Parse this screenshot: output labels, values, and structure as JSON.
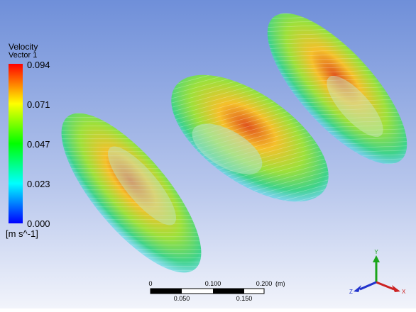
{
  "legend": {
    "title": "Velocity",
    "subtitle": "Vector 1",
    "labels": [
      "0.094",
      "0.071",
      "0.047",
      "0.023",
      "0.000"
    ],
    "unit": "[m s^-1]"
  },
  "scale_bar": {
    "top_labels": [
      "0",
      "0.100",
      "0.200"
    ],
    "unit": "(m)",
    "bottom_labels": [
      "0.050",
      "0.150"
    ]
  },
  "axes": {
    "y": "Y",
    "z": "Z",
    "x": "X"
  }
}
